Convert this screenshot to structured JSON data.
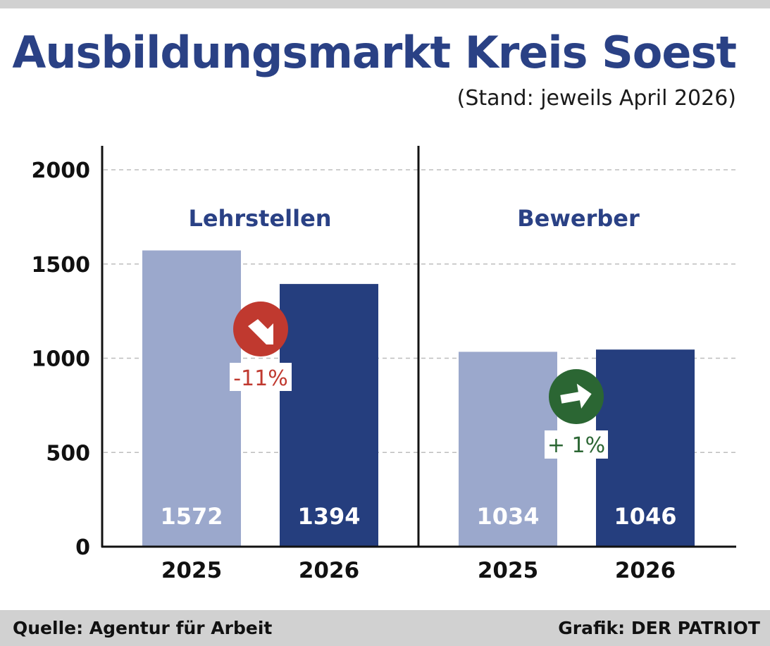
{
  "header": {
    "title": "Ausbildungsmarkt Kreis Soest",
    "subtitle": "(Stand: jeweils April 2026)"
  },
  "footer": {
    "source": "Quelle: Agentur für Arbeit",
    "credit": "Grafik: DER PATRIOT"
  },
  "colors": {
    "title": "#2a4185",
    "bar_2025": "#9ba8cc",
    "bar_2026": "#253e7e",
    "decrease": "#c0392f",
    "increase": "#2b6633",
    "grid": "#bdbdbd"
  },
  "chart_data": {
    "type": "bar",
    "yticks": [
      "0",
      "500",
      "1000",
      "1500",
      "2000"
    ],
    "ylim": [
      0,
      2100
    ],
    "grid": true,
    "panels": [
      {
        "label": "Lehrstellen",
        "categories": [
          "2025",
          "2026"
        ],
        "values": [
          1572,
          1394
        ],
        "value_labels": [
          "1572",
          "1394"
        ],
        "change": {
          "text": "-11%",
          "direction": "down",
          "icon": "arrow-down-right-icon"
        }
      },
      {
        "label": "Bewerber",
        "categories": [
          "2025",
          "2026"
        ],
        "values": [
          1034,
          1046
        ],
        "value_labels": [
          "1034",
          "1046"
        ],
        "change": {
          "text": "+ 1%",
          "direction": "right",
          "icon": "arrow-right-icon"
        }
      }
    ]
  }
}
